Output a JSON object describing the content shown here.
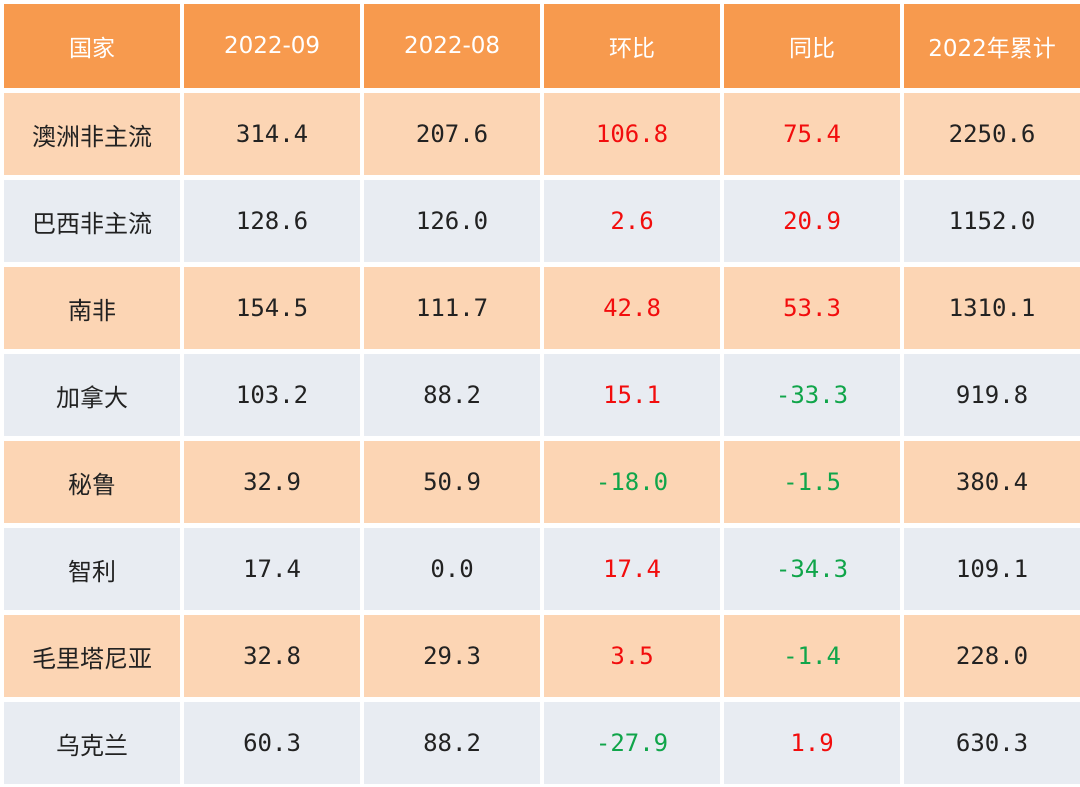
{
  "table": {
    "headers": [
      "国家",
      "2022-09",
      "2022-08",
      "环比",
      "同比",
      "2022年累计"
    ],
    "rows": [
      {
        "country": "澳洲非主流",
        "sep": "314.4",
        "aug": "207.6",
        "mom": "106.8",
        "yoy": "75.4",
        "ytd": "2250.6"
      },
      {
        "country": "巴西非主流",
        "sep": "128.6",
        "aug": "126.0",
        "mom": "2.6",
        "yoy": "20.9",
        "ytd": "1152.0"
      },
      {
        "country": "南非",
        "sep": "154.5",
        "aug": "111.7",
        "mom": "42.8",
        "yoy": "53.3",
        "ytd": "1310.1"
      },
      {
        "country": "加拿大",
        "sep": "103.2",
        "aug": "88.2",
        "mom": "15.1",
        "yoy": "-33.3",
        "ytd": "919.8"
      },
      {
        "country": "秘鲁",
        "sep": "32.9",
        "aug": "50.9",
        "mom": "-18.0",
        "yoy": "-1.5",
        "ytd": "380.4"
      },
      {
        "country": "智利",
        "sep": "17.4",
        "aug": "0.0",
        "mom": "17.4",
        "yoy": "-34.3",
        "ytd": "109.1"
      },
      {
        "country": "毛里塔尼亚",
        "sep": "32.8",
        "aug": "29.3",
        "mom": "3.5",
        "yoy": "-1.4",
        "ytd": "228.0"
      },
      {
        "country": "乌克兰",
        "sep": "60.3",
        "aug": "88.2",
        "mom": "-27.9",
        "yoy": "1.9",
        "ytd": "630.3"
      }
    ]
  },
  "colors": {
    "header_bg": "#F79A4E",
    "row_odd_bg": "#FCD5B4",
    "row_even_bg": "#E8ECF2",
    "positive_text": "#F20D0D",
    "negative_text": "#10A54A"
  }
}
